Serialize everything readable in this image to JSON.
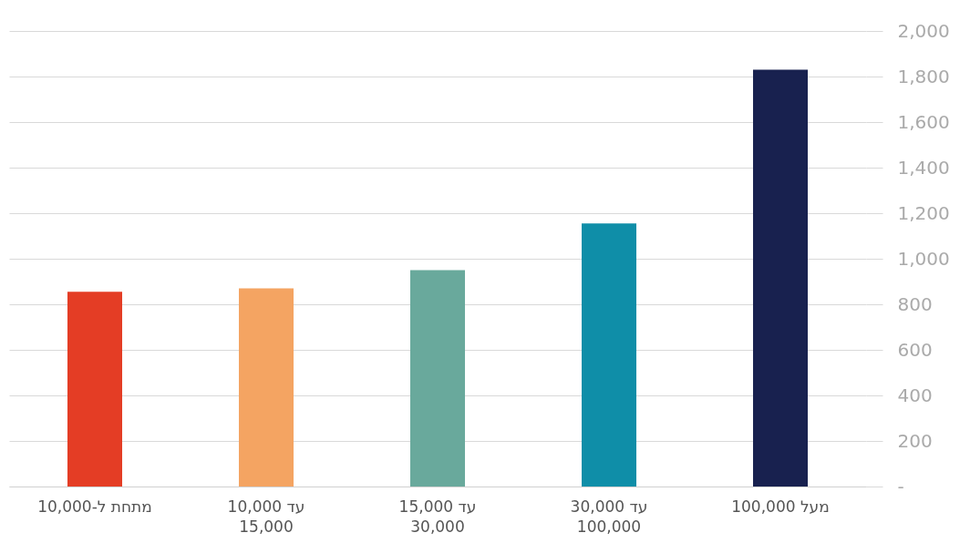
{
  "chart_data": {
    "type": "bar",
    "categories": [
      "מתחת ל-10,000",
      "10,000 עד\n15,000",
      "15,000 עד\n30,000",
      "30,000 עד\n100,000",
      "מעל 100,000"
    ],
    "values": [
      855,
      870,
      950,
      1155,
      1830
    ],
    "colors": [
      "#e43d25",
      "#f4a462",
      "#69a99c",
      "#0f8ea8",
      "#18214f"
    ],
    "ylim": [
      0,
      2000
    ],
    "yticks": [
      {
        "value": 0,
        "label": "-"
      },
      200,
      400,
      600,
      800,
      {
        "value": 1000,
        "label": "1,000"
      },
      {
        "value": 1200,
        "label": "1,200"
      },
      {
        "value": 1400,
        "label": "1,400"
      },
      {
        "value": 1600,
        "label": "1,600"
      },
      {
        "value": 1800,
        "label": "1,800"
      },
      {
        "value": 2000,
        "label": "2,000"
      }
    ],
    "grid": "y"
  }
}
